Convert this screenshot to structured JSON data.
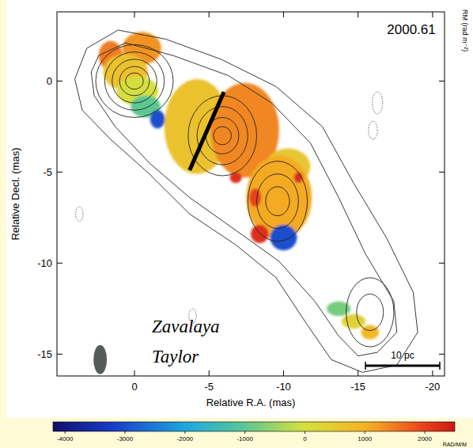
{
  "chart_data": {
    "type": "contour",
    "title": "2000.61",
    "x_label": "Relative R.A. (mas)",
    "y_label": "Relative Decl. (mas)",
    "xlim": [
      5.2,
      -20.8
    ],
    "ylim": [
      -16.2,
      3.8
    ],
    "xticks": [
      0,
      -5,
      -10,
      -15,
      -20
    ],
    "yticks": [
      0,
      -5,
      -10,
      -15
    ],
    "envelopes": [
      {
        "x": [
          3.2,
          1.1,
          -2.1,
          -5.8,
          -9.5,
          -12.6,
          -14.7,
          -16.9,
          -18.7,
          -19.0,
          -17.6,
          -15.3,
          -13.2,
          -11.6,
          -9.5,
          -6.8,
          -3.7,
          -1.0,
          1.6,
          3.5,
          4.0
        ],
        "y": [
          1.8,
          2.8,
          2.3,
          1.2,
          -0.3,
          -2.5,
          -5.6,
          -8.6,
          -11.6,
          -13.8,
          -15.6,
          -16.0,
          -15.3,
          -13.4,
          -10.8,
          -9.0,
          -7.3,
          -5.1,
          -3.2,
          -1.6,
          0.1
        ]
      },
      {
        "x": [
          2.4,
          0.6,
          -2.6,
          -6.3,
          -9.2,
          -11.8,
          -13.7,
          -15.5,
          -17.4,
          -17.6,
          -16.3,
          -15.0,
          -13.7,
          -12.1,
          -9.7,
          -6.8,
          -3.7,
          -1.0,
          1.3,
          2.7,
          2.9
        ],
        "y": [
          1.4,
          2.1,
          1.4,
          0.3,
          -1.2,
          -3.4,
          -6.4,
          -9.5,
          -12.1,
          -13.8,
          -14.9,
          -15.1,
          -14.0,
          -12.1,
          -9.9,
          -8.2,
          -6.4,
          -4.5,
          -2.5,
          -0.8,
          0.5
        ]
      }
    ],
    "components": [
      {
        "x": 0,
        "y": 0,
        "rx": [
          2.6,
          2.0,
          1.5,
          1.0,
          0.6
        ],
        "ry": [
          2.0,
          1.6,
          1.2,
          0.8,
          0.45
        ]
      },
      {
        "x": -5.9,
        "y": -3.0,
        "rx": [
          2.3,
          1.7,
          1.1,
          0.6
        ],
        "ry": [
          2.2,
          1.6,
          1.0,
          0.5
        ]
      },
      {
        "x": -9.6,
        "y": -6.6,
        "rx": [
          2.0,
          1.4,
          0.8
        ],
        "ry": [
          2.2,
          1.5,
          0.8
        ]
      },
      {
        "x": -15.8,
        "y": -12.7,
        "rx": [
          1.6,
          0.9
        ],
        "ry": [
          1.9,
          1.0
        ]
      }
    ],
    "negative_contours": [
      {
        "x": -16.3,
        "y": -1.2,
        "rx": 0.35,
        "ry": 0.6
      },
      {
        "x": -16.0,
        "y": -2.7,
        "rx": 0.3,
        "ry": 0.5
      },
      {
        "x": -3.9,
        "y": -12.9,
        "rx": 0.25,
        "ry": 0.4
      },
      {
        "x": 3.7,
        "y": -7.3,
        "rx": 0.25,
        "ry": 0.4
      }
    ],
    "rm_regions": [
      {
        "x": 1.6,
        "y": 1.4,
        "rx": 0.8,
        "ry": 0.8,
        "rm": 1500
      },
      {
        "x": -0.5,
        "y": 1.8,
        "rx": 1.3,
        "ry": 0.9,
        "rm": 1300
      },
      {
        "x": 0.6,
        "y": 0.5,
        "rx": 1.5,
        "ry": 1.0,
        "rm": 700
      },
      {
        "x": -0.2,
        "y": -0.55,
        "rx": 1.4,
        "ry": 0.8,
        "rm": 0
      },
      {
        "x": -0.75,
        "y": -1.4,
        "rx": 1.0,
        "ry": 0.6,
        "rm": -1000
      },
      {
        "x": -1.55,
        "y": -2.1,
        "rx": 0.5,
        "ry": 0.5,
        "rm": -3000
      },
      {
        "x": -4.2,
        "y": -2.5,
        "rx": 2.2,
        "ry": 2.6,
        "rm": 700
      },
      {
        "x": -7.4,
        "y": -2.7,
        "rx": 2.3,
        "ry": 2.6,
        "rm": 1400
      },
      {
        "x": -6.8,
        "y": -5.3,
        "rx": 0.4,
        "ry": 0.3,
        "rm": 2200
      },
      {
        "x": -10.3,
        "y": -4.7,
        "rx": 1.5,
        "ry": 1.0,
        "rm": 600
      },
      {
        "x": -9.7,
        "y": -6.4,
        "rx": 2.2,
        "ry": 2.3,
        "rm": 1100
      },
      {
        "x": -8.1,
        "y": -6.4,
        "rx": 0.4,
        "ry": 0.5,
        "rm": 2000
      },
      {
        "x": -11.0,
        "y": -5.3,
        "rx": 0.3,
        "ry": 0.3,
        "rm": 2200
      },
      {
        "x": -8.4,
        "y": -8.4,
        "rx": 0.6,
        "ry": 0.5,
        "rm": 2200
      },
      {
        "x": -10.0,
        "y": -8.6,
        "rx": 0.9,
        "ry": 0.7,
        "rm": -3000
      },
      {
        "x": -13.7,
        "y": -12.5,
        "rx": 0.8,
        "ry": 0.4,
        "rm": -800
      },
      {
        "x": -14.7,
        "y": -13.2,
        "rx": 0.8,
        "ry": 0.4,
        "rm": 300
      },
      {
        "x": -15.8,
        "y": -13.8,
        "rx": 0.6,
        "ry": 0.4,
        "rm": 900
      }
    ],
    "line": {
      "x": [
        -3.7,
        -6.0
      ],
      "y": [
        -4.9,
        -0.6
      ]
    },
    "beam": {
      "x": 2.3,
      "y": -15.3,
      "width": 0.45,
      "height": 0.8
    },
    "annotations": [
      "Zavalaya",
      "Taylor"
    ],
    "scale_bar": "10 pc",
    "colorbar": {
      "label": "RM (rad m⁻²)",
      "units": "RAD/M/M",
      "range": [
        -4200,
        2500
      ],
      "ticks": [
        -4000,
        -3000,
        -2000,
        -1000,
        0,
        1000,
        2000
      ]
    }
  }
}
